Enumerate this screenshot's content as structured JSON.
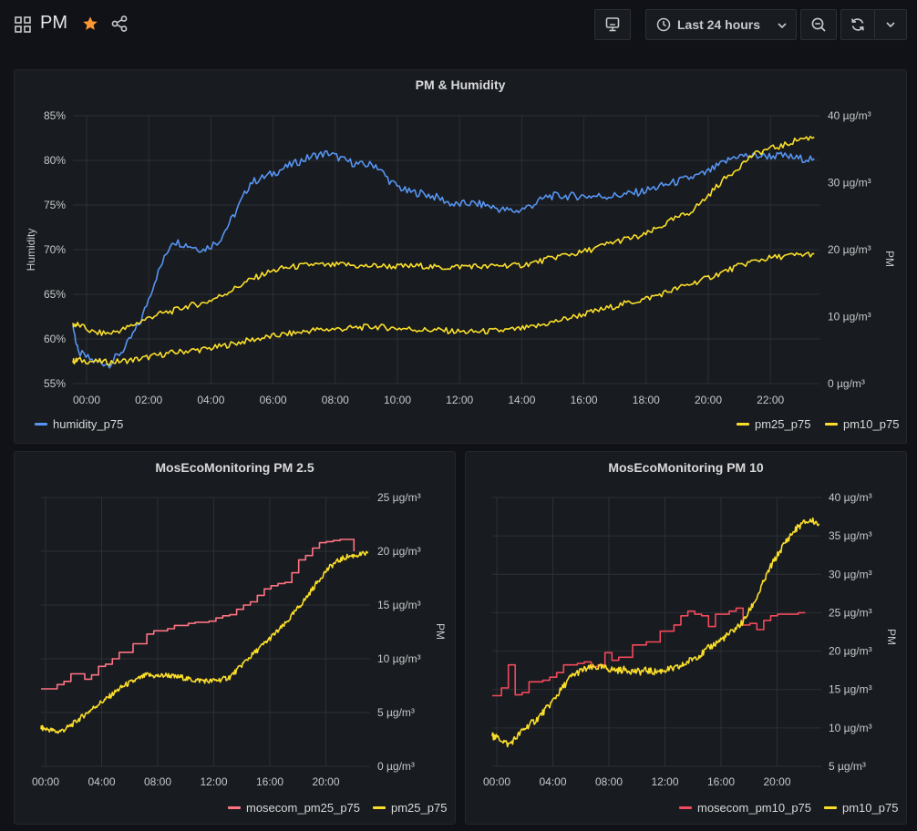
{
  "header": {
    "title": "PM",
    "time_range": "Last 24 hours"
  },
  "colors": {
    "humidity": "#5794f2",
    "pm": "#fade2a",
    "mosecom": "#ff7383",
    "mosecom10": "#f2495c",
    "star": "#ff9830"
  },
  "icons": [
    "apps-icon",
    "star-icon",
    "share-icon",
    "tv-icon",
    "clock-icon",
    "chevron-down-icon",
    "zoom-out-icon",
    "refresh-icon"
  ],
  "panels": {
    "top": {
      "title": "PM & Humidity",
      "y_left_ticks": [
        "85%",
        "80%",
        "75%",
        "70%",
        "65%",
        "60%",
        "55%"
      ],
      "y_right_ticks": [
        "40 µg/m³",
        "30 µg/m³",
        "20 µg/m³",
        "10 µg/m³",
        "0 µg/m³"
      ],
      "x_ticks": [
        "00:00",
        "02:00",
        "04:00",
        "06:00",
        "08:00",
        "10:00",
        "12:00",
        "14:00",
        "16:00",
        "18:00",
        "20:00",
        "22:00"
      ],
      "y_left_label": "Humidity",
      "y_right_label": "PM",
      "legend_left": [
        "humidity_p75"
      ],
      "legend_right": [
        "pm25_p75",
        "pm10_p75"
      ]
    },
    "bottom_left": {
      "title": "MosEcoMonitoring PM 2.5",
      "y_ticks": [
        "25 µg/m³",
        "20 µg/m³",
        "15 µg/m³",
        "10 µg/m³",
        "5 µg/m³",
        "0 µg/m³"
      ],
      "x_ticks": [
        "00:00",
        "04:00",
        "08:00",
        "12:00",
        "16:00",
        "20:00"
      ],
      "y_label": "PM",
      "legend": [
        "mosecom_pm25_p75",
        "pm25_p75"
      ]
    },
    "bottom_right": {
      "title": "MosEcoMonitoring PM 10",
      "y_ticks": [
        "40 µg/m³",
        "35 µg/m³",
        "30 µg/m³",
        "25 µg/m³",
        "20 µg/m³",
        "15 µg/m³",
        "10 µg/m³",
        "5 µg/m³"
      ],
      "x_ticks": [
        "00:00",
        "04:00",
        "08:00",
        "12:00",
        "16:00",
        "20:00"
      ],
      "y_label": "PM",
      "legend": [
        "mosecom_pm10_p75",
        "pm10_p75"
      ]
    }
  },
  "chart_data": [
    {
      "type": "line",
      "title": "PM & Humidity",
      "x": [
        "23:50",
        "00:00",
        "00:30",
        "01:00",
        "01:30",
        "02:00",
        "02:30",
        "03:00",
        "03:30",
        "04:00",
        "04:30",
        "05:00",
        "05:30",
        "06:00",
        "06:30",
        "07:00",
        "07:30",
        "08:00",
        "08:30",
        "09:00",
        "09:30",
        "10:00",
        "10:30",
        "11:00",
        "11:30",
        "12:00",
        "12:30",
        "13:00",
        "13:30",
        "14:00",
        "14:30",
        "15:00",
        "15:30",
        "16:00",
        "16:30",
        "17:00",
        "17:30",
        "18:00",
        "18:30",
        "19:00",
        "19:30",
        "20:00",
        "20:30",
        "21:00",
        "21:30",
        "22:00",
        "22:30",
        "23:00",
        "23:30"
      ],
      "ylabel_left": "Humidity",
      "ylabel_right": "PM",
      "ylim_left": [
        55,
        85
      ],
      "ylim_right": [
        0,
        40
      ],
      "grid": true,
      "series": [
        {
          "name": "humidity_p75",
          "axis": "left",
          "values": [
            61.5,
            58.5,
            57.5,
            57.2,
            59,
            62,
            67,
            71,
            70.5,
            70,
            71,
            74,
            77.5,
            78.2,
            79,
            79.8,
            80.5,
            80.8,
            80,
            79.5,
            79.5,
            77.5,
            76.5,
            76.3,
            75.8,
            75,
            75.2,
            75,
            74.5,
            74.3,
            75,
            76,
            76,
            76,
            76,
            76,
            76.2,
            76.5,
            77,
            77.5,
            78,
            78.5,
            79.5,
            80.5,
            80.5,
            80.5,
            80.5,
            80.2,
            80.2
          ]
        },
        {
          "name": "pm25_p75",
          "axis": "right",
          "values": [
            3.3,
            3.5,
            3.3,
            3.2,
            3.4,
            3.7,
            4.2,
            4.6,
            4.9,
            5.1,
            5.5,
            6.0,
            6.5,
            6.9,
            7.3,
            7.6,
            8.0,
            8.1,
            8.2,
            8.4,
            8.5,
            8.3,
            8.2,
            8.0,
            8.0,
            7.8,
            7.7,
            7.8,
            7.9,
            8.1,
            8.4,
            9.0,
            9.6,
            10.2,
            10.8,
            11.4,
            12.0,
            12.5,
            13.2,
            14.0,
            14.8,
            15.6,
            16.5,
            17.4,
            18.2,
            18.7,
            19.0,
            19.2,
            19.4
          ]
        },
        {
          "name": "pm10_p75",
          "axis": "right",
          "values": [
            8.8,
            8.8,
            7.6,
            7.5,
            8.2,
            9.3,
            10.3,
            10.8,
            11.6,
            12,
            13,
            14.2,
            15.5,
            16.5,
            17.2,
            17.5,
            17.8,
            17.6,
            17.8,
            17.5,
            17.6,
            17.5,
            17.5,
            17.6,
            17.3,
            17.4,
            17.6,
            17.4,
            17.7,
            17.6,
            18,
            18.6,
            19.2,
            19.5,
            20.2,
            21,
            21.6,
            22,
            23.2,
            24.5,
            25.5,
            27.5,
            30,
            32,
            34,
            35,
            35.5,
            36.5,
            36.8
          ]
        }
      ]
    },
    {
      "type": "line",
      "title": "MosEcoMonitoring PM 2.5",
      "x": [
        "23:50",
        "00:00",
        "00:30",
        "01:00",
        "01:30",
        "02:00",
        "02:30",
        "03:00",
        "03:30",
        "04:00",
        "04:30",
        "05:00",
        "05:30",
        "06:00",
        "06:30",
        "07:00",
        "07:30",
        "08:00",
        "08:30",
        "09:00",
        "09:30",
        "10:00",
        "10:30",
        "11:00",
        "11:30",
        "12:00",
        "12:30",
        "13:00",
        "13:30",
        "14:00",
        "14:30",
        "15:00",
        "15:30",
        "16:00",
        "16:30",
        "17:00",
        "17:30",
        "18:00",
        "18:30",
        "19:00",
        "19:30",
        "20:00",
        "20:30",
        "21:00",
        "21:30",
        "22:00",
        "22:30",
        "23:00",
        "23:30"
      ],
      "ylabel": "PM",
      "ylim": [
        0,
        25
      ],
      "grid": true,
      "series": [
        {
          "name": "mosecom_pm25_p75",
          "step": true,
          "values": [
            7.2,
            7.2,
            7.2,
            7.6,
            7.9,
            8.6,
            8.6,
            8.1,
            8.5,
            9.3,
            9.5,
            10.0,
            10.6,
            10.6,
            11.4,
            11.4,
            12.3,
            12.6,
            12.6,
            12.8,
            13.1,
            13.1,
            13.3,
            13.4,
            13.4,
            13.5,
            13.8,
            14.0,
            14.1,
            14.6,
            15.0,
            15.3,
            15.9,
            16.5,
            16.8,
            17.0,
            17.1,
            18.0,
            19.2,
            19.6,
            20.3,
            20.8,
            20.9,
            21.0,
            21.1,
            21.1,
            20.0,
            null,
            null
          ]
        },
        {
          "name": "pm25_p75",
          "values": [
            3.6,
            3.5,
            3.4,
            3.2,
            3.4,
            3.8,
            4.3,
            4.8,
            5.3,
            5.8,
            6.2,
            6.7,
            7.2,
            7.6,
            7.9,
            8.2,
            8.5,
            8.4,
            8.4,
            8.5,
            8.3,
            8.3,
            8.1,
            8.0,
            8.0,
            7.9,
            8.0,
            8.1,
            8.3,
            8.9,
            9.6,
            10.2,
            10.8,
            11.4,
            12.0,
            12.6,
            13.2,
            14.0,
            14.8,
            15.6,
            16.5,
            17.4,
            18.2,
            18.8,
            19.2,
            19.5,
            19.6,
            19.7,
            19.8
          ]
        }
      ]
    },
    {
      "type": "line",
      "title": "MosEcoMonitoring PM 10",
      "x": [
        "23:50",
        "00:00",
        "00:30",
        "01:00",
        "01:30",
        "02:00",
        "02:30",
        "03:00",
        "03:30",
        "04:00",
        "04:30",
        "05:00",
        "05:30",
        "06:00",
        "06:30",
        "07:00",
        "07:30",
        "08:00",
        "08:30",
        "09:00",
        "09:30",
        "10:00",
        "10:30",
        "11:00",
        "11:30",
        "12:00",
        "12:30",
        "13:00",
        "13:30",
        "14:00",
        "14:30",
        "15:00",
        "15:30",
        "16:00",
        "16:30",
        "17:00",
        "17:30",
        "18:00",
        "18:30",
        "19:00",
        "19:30",
        "20:00",
        "20:30",
        "21:00",
        "21:30",
        "22:00",
        "22:30",
        "23:00",
        "23:30"
      ],
      "ylabel": "PM",
      "ylim": [
        5,
        40
      ],
      "grid": true,
      "series": [
        {
          "name": "mosecom_pm10_p75",
          "step": true,
          "values": [
            14.2,
            14.2,
            15.2,
            18.2,
            14.3,
            14.6,
            16.0,
            16.0,
            16.2,
            16.6,
            17.2,
            18.2,
            18.2,
            18.4,
            18.6,
            18.0,
            18.2,
            19.8,
            18.8,
            19.2,
            19.2,
            20.8,
            20.8,
            21.2,
            21.2,
            22.6,
            22.6,
            23.4,
            24.6,
            25.2,
            24.8,
            24.6,
            23.2,
            24.8,
            24.8,
            25.2,
            25.6,
            23.4,
            23.6,
            22.8,
            24.0,
            24.6,
            24.8,
            24.8,
            24.8,
            25.0,
            25.0,
            null,
            null
          ]
        },
        {
          "name": "pm10_p75",
          "values": [
            9.0,
            8.8,
            8.5,
            7.8,
            8.6,
            9.6,
            10.4,
            11.0,
            12.0,
            13.0,
            14.2,
            15.4,
            16.6,
            17.2,
            17.6,
            17.8,
            17.9,
            17.8,
            17.6,
            17.5,
            17.6,
            17.4,
            17.3,
            17.5,
            17.3,
            17.4,
            17.6,
            17.7,
            18.0,
            18.6,
            19.2,
            19.6,
            20.4,
            21.0,
            21.6,
            22.2,
            23.0,
            23.8,
            25.4,
            27.0,
            29.0,
            31.0,
            32.5,
            34.0,
            35.2,
            36.2,
            36.8,
            37.0,
            36.6
          ]
        }
      ]
    }
  ]
}
